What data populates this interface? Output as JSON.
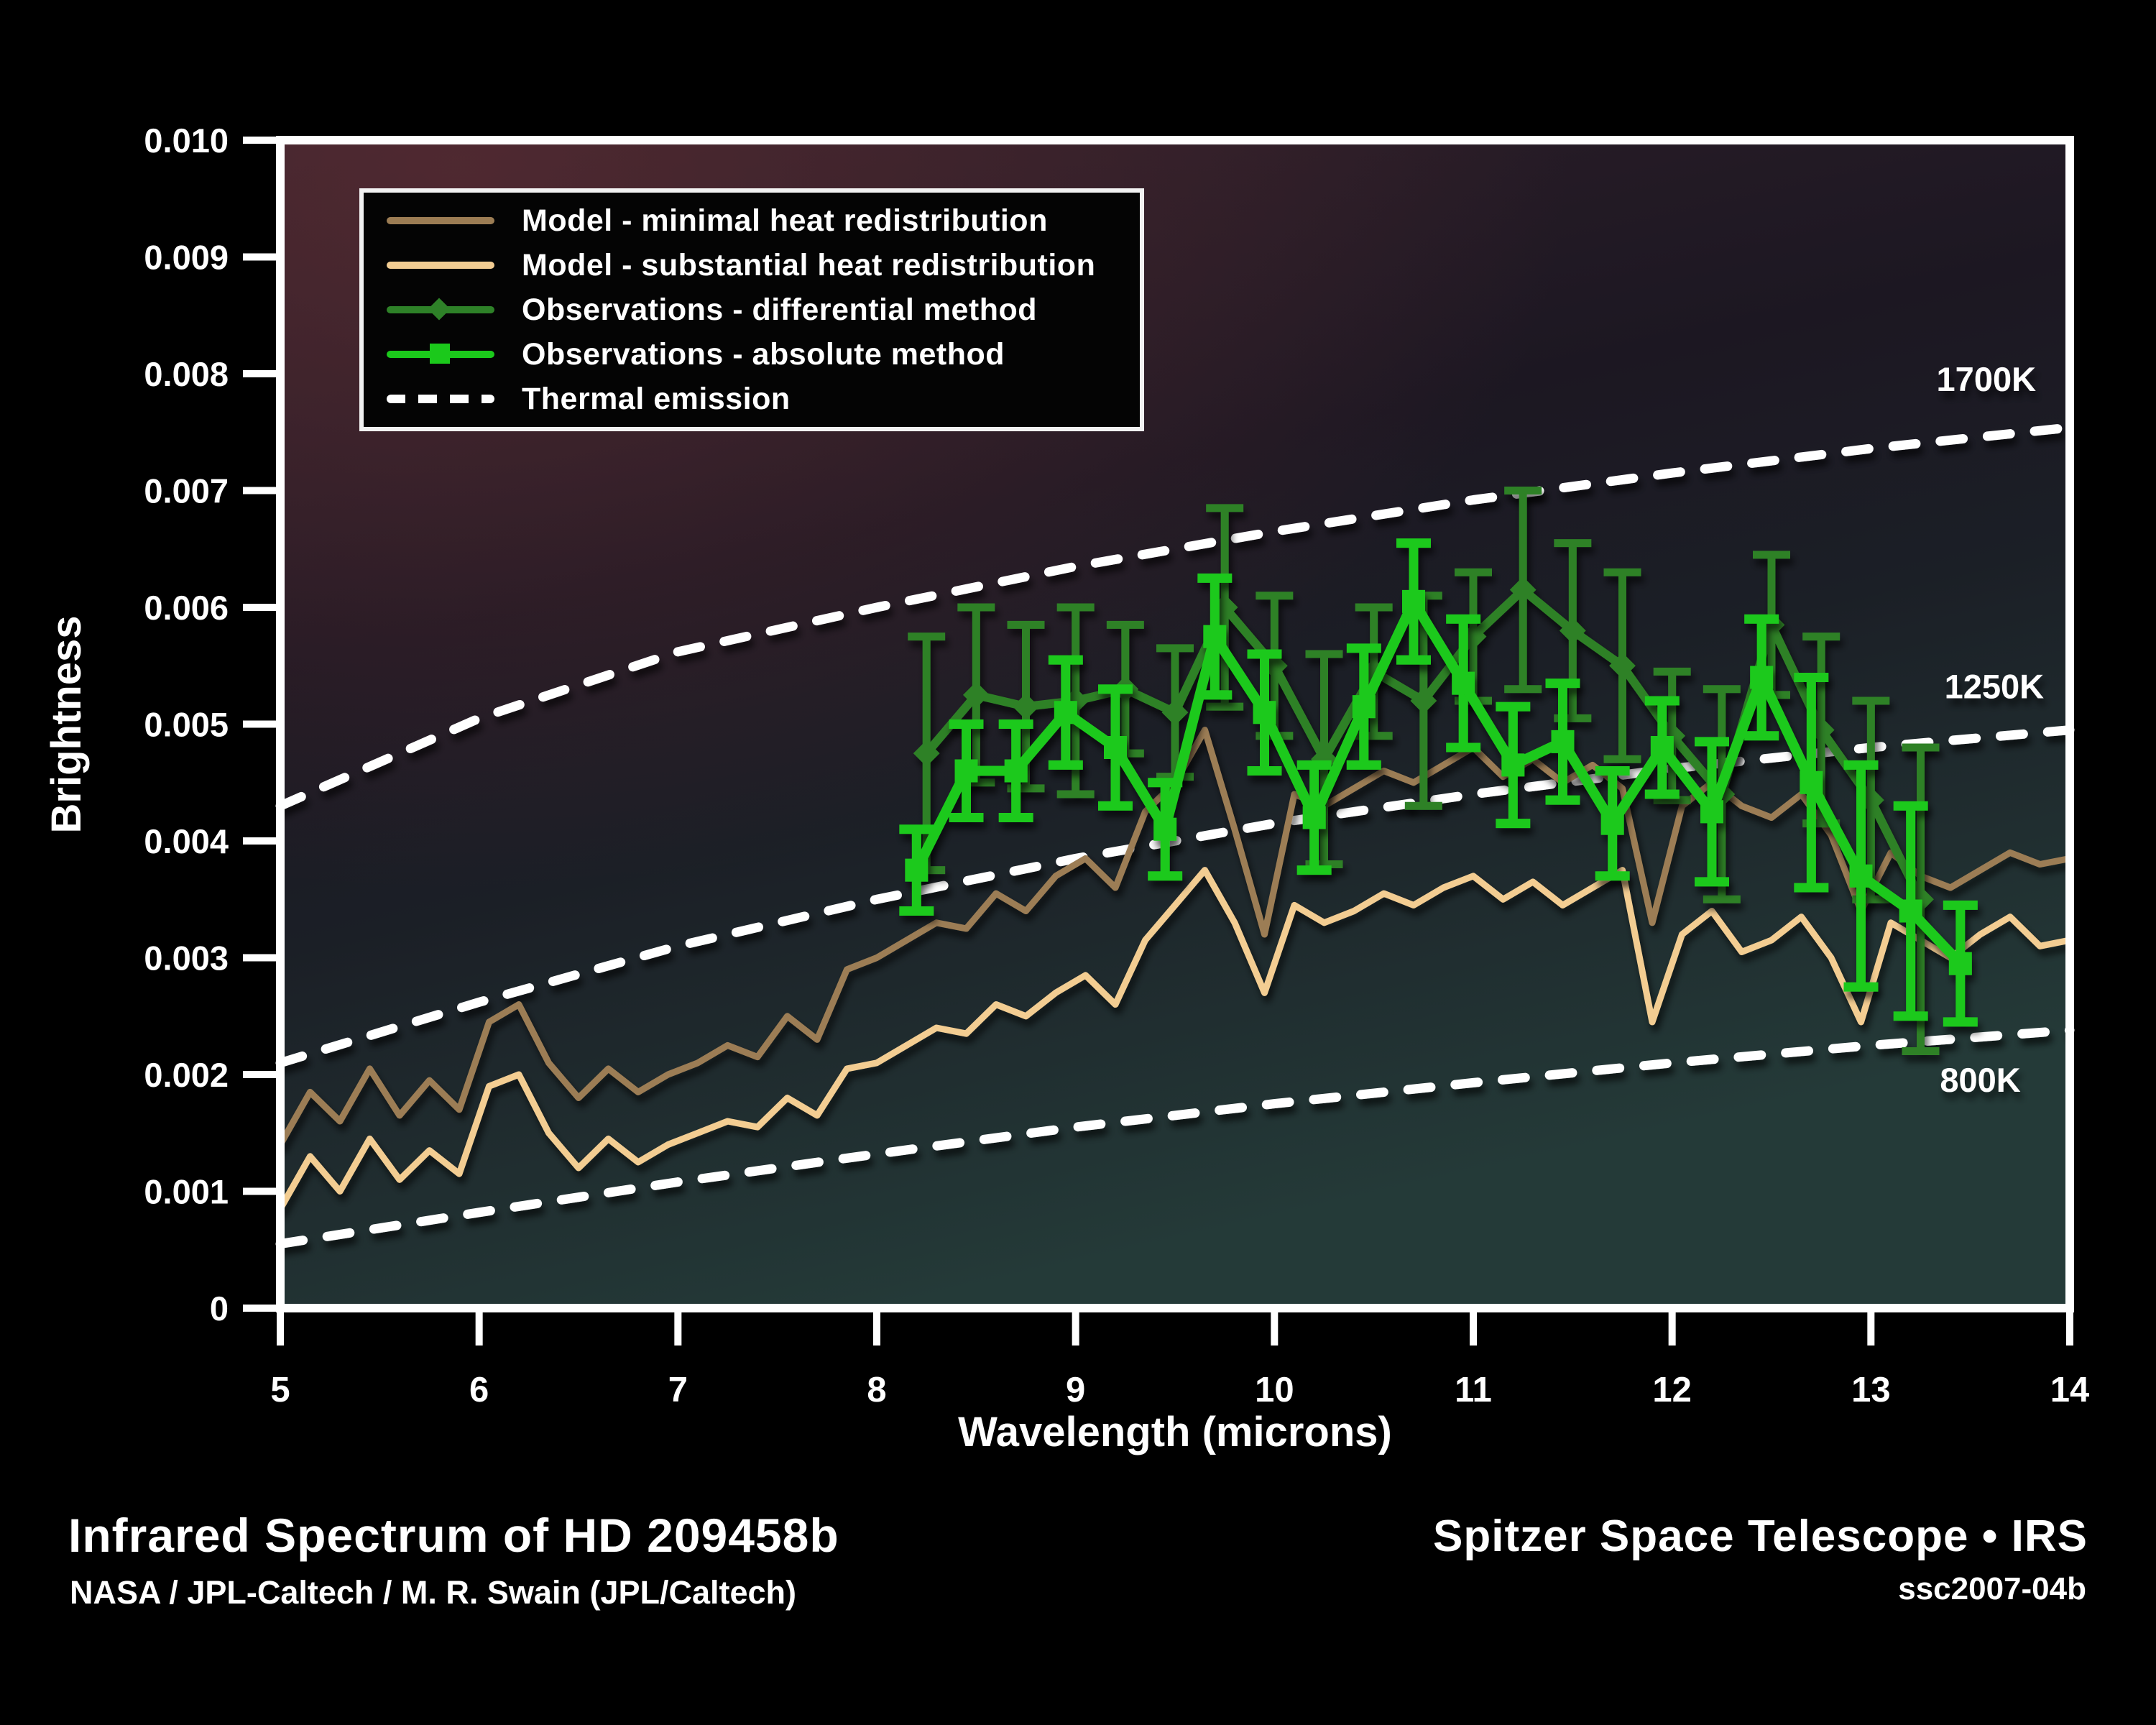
{
  "colors": {
    "background": "#000000",
    "axis": "#ffffff",
    "model_minimal": "#9c7d54",
    "model_substantial": "#f3cd92",
    "obs_differential": "#2e8128",
    "obs_absolute": "#1bc91b",
    "thermal": "#ffffff",
    "plot_bg_top_left": "#38222a",
    "plot_bg_mid": "#1b1822",
    "plot_bg_bottom": "#233736"
  },
  "legend": {
    "items": [
      {
        "label": "Model - minimal heat redistribution",
        "swatch": "line",
        "color_key": "model_minimal"
      },
      {
        "label": "Model - substantial heat redistribution",
        "swatch": "line",
        "color_key": "model_substantial"
      },
      {
        "label": "Observations - differential method",
        "swatch": "line-diamond",
        "color_key": "obs_differential"
      },
      {
        "label": "Observations - absolute method",
        "swatch": "line-square",
        "color_key": "obs_absolute"
      },
      {
        "label": "Thermal emission",
        "swatch": "dashed",
        "color_key": "thermal"
      }
    ]
  },
  "footer": {
    "title": "Infrared Spectrum of HD 209458b",
    "credit": "NASA / JPL-Caltech / M. R. Swain (JPL/Caltech)",
    "right_title": "Spitzer Space Telescope • IRS",
    "right_sub": "ssc2007-04b"
  },
  "chart_data": {
    "type": "line",
    "title": "Infrared Spectrum of HD 209458b",
    "xlabel": "Wavelength (microns)",
    "ylabel": "Brightness",
    "xlim": [
      5,
      14
    ],
    "ylim": [
      0,
      0.01
    ],
    "x_ticks": [
      5,
      6,
      7,
      8,
      9,
      10,
      11,
      12,
      13,
      14
    ],
    "y_ticks": [
      {
        "v": 0,
        "label": "0"
      },
      {
        "v": 1,
        "label": "0.001"
      },
      {
        "v": 2,
        "label": "0.002"
      },
      {
        "v": 3,
        "label": "0.003"
      },
      {
        "v": 4,
        "label": "0.004"
      },
      {
        "v": 5,
        "label": "0.005"
      },
      {
        "v": 6,
        "label": "0.006"
      },
      {
        "v": 7,
        "label": "0.007"
      },
      {
        "v": 8,
        "label": "0.008"
      },
      {
        "v": 9,
        "label": "0.009"
      },
      {
        "v": 10,
        "label": "0.010"
      }
    ],
    "y_unit": "brightness, series y values stored as value × 0.001",
    "thermal": [
      {
        "name": "1700K",
        "x": [
          5,
          6,
          7,
          8,
          9,
          10,
          11,
          12,
          13,
          14
        ],
        "y_mil": [
          4.3,
          5.05,
          5.62,
          6.0,
          6.35,
          6.65,
          6.92,
          7.15,
          7.36,
          7.54
        ],
        "label_pos": {
          "x": 13.58,
          "y_mil": 7.95
        }
      },
      {
        "name": "1250K",
        "x": [
          5,
          6,
          7,
          8,
          9,
          10,
          11,
          12,
          13,
          14
        ],
        "y_mil": [
          2.1,
          2.62,
          3.1,
          3.5,
          3.85,
          4.15,
          4.4,
          4.62,
          4.8,
          4.95
        ],
        "label_pos": {
          "x": 13.62,
          "y_mil": 5.32
        }
      },
      {
        "name": "800K",
        "x": [
          5,
          6,
          7,
          8,
          9,
          10,
          11,
          12,
          13,
          14
        ],
        "y_mil": [
          0.55,
          0.82,
          1.08,
          1.32,
          1.55,
          1.75,
          1.93,
          2.1,
          2.25,
          2.38
        ],
        "label_pos": {
          "x": 13.55,
          "y_mil": 1.95
        }
      }
    ],
    "models": [
      {
        "name": "Model - minimal heat redistribution",
        "color_key": "model_minimal",
        "x_start": 5.0,
        "x_step": 0.15,
        "y_mil": [
          1.4,
          1.85,
          1.6,
          2.05,
          1.65,
          1.95,
          1.7,
          2.45,
          2.6,
          2.1,
          1.8,
          2.05,
          1.85,
          2.0,
          2.1,
          2.25,
          2.15,
          2.5,
          2.3,
          2.9,
          3.0,
          3.15,
          3.3,
          3.25,
          3.55,
          3.4,
          3.7,
          3.85,
          3.6,
          4.25,
          4.5,
          4.95,
          4.1,
          3.2,
          4.4,
          4.3,
          4.45,
          4.6,
          4.5,
          4.65,
          4.8,
          4.55,
          4.7,
          4.5,
          4.65,
          4.45,
          3.3,
          4.3,
          4.5,
          4.3,
          4.2,
          4.4,
          4.05,
          3.4,
          3.9,
          3.7,
          3.6,
          3.75,
          3.9,
          3.8,
          3.85
        ]
      },
      {
        "name": "Model - substantial heat redistribution",
        "color_key": "model_substantial",
        "x_start": 5.0,
        "x_step": 0.15,
        "y_mil": [
          0.85,
          1.3,
          1.0,
          1.45,
          1.1,
          1.35,
          1.15,
          1.9,
          2.0,
          1.5,
          1.2,
          1.45,
          1.25,
          1.4,
          1.5,
          1.6,
          1.55,
          1.8,
          1.65,
          2.05,
          2.1,
          2.25,
          2.4,
          2.35,
          2.6,
          2.5,
          2.7,
          2.85,
          2.6,
          3.15,
          3.45,
          3.75,
          3.3,
          2.7,
          3.45,
          3.3,
          3.4,
          3.55,
          3.45,
          3.6,
          3.7,
          3.5,
          3.65,
          3.45,
          3.6,
          3.75,
          2.45,
          3.2,
          3.4,
          3.05,
          3.15,
          3.35,
          3.0,
          2.45,
          3.3,
          3.15,
          3.0,
          3.2,
          3.35,
          3.1,
          3.15
        ]
      }
    ],
    "observations": [
      {
        "name": "Observations - differential method",
        "color_key": "obs_differential",
        "marker": "diamond",
        "x": [
          8.25,
          8.5,
          8.75,
          9.0,
          9.25,
          9.5,
          9.75,
          10.0,
          10.25,
          10.5,
          10.75,
          11.0,
          11.25,
          11.5,
          11.75,
          12.0,
          12.25,
          12.5,
          12.75,
          13.0,
          13.25
        ],
        "y_mil": [
          4.75,
          5.25,
          5.15,
          5.2,
          5.3,
          5.1,
          6.0,
          5.5,
          4.7,
          5.45,
          5.2,
          5.75,
          6.15,
          5.8,
          5.5,
          4.9,
          4.4,
          5.85,
          4.95,
          4.35,
          3.5
        ],
        "err_mil": [
          1.0,
          0.75,
          0.7,
          0.8,
          0.55,
          0.55,
          0.85,
          0.6,
          0.9,
          0.55,
          0.9,
          0.55,
          0.85,
          0.75,
          0.8,
          0.55,
          0.9,
          0.6,
          0.8,
          0.85,
          1.3
        ]
      },
      {
        "name": "Observations - absolute method",
        "color_key": "obs_absolute",
        "marker": "square",
        "x": [
          8.2,
          8.45,
          8.7,
          8.95,
          9.2,
          9.45,
          9.7,
          9.95,
          10.2,
          10.45,
          10.7,
          10.95,
          11.2,
          11.45,
          11.7,
          11.95,
          12.2,
          12.45,
          12.7,
          12.95,
          13.2,
          13.45
        ],
        "y_mil": [
          3.75,
          4.6,
          4.6,
          5.1,
          4.8,
          4.1,
          5.75,
          5.1,
          4.2,
          5.15,
          6.05,
          5.35,
          4.65,
          4.85,
          4.15,
          4.8,
          4.25,
          5.4,
          4.5,
          3.7,
          3.4,
          2.95
        ],
        "err_mil": [
          0.35,
          0.4,
          0.4,
          0.45,
          0.5,
          0.4,
          0.5,
          0.5,
          0.45,
          0.5,
          0.5,
          0.55,
          0.5,
          0.5,
          0.45,
          0.4,
          0.6,
          0.5,
          0.9,
          0.95,
          0.9,
          0.5
        ]
      }
    ]
  }
}
